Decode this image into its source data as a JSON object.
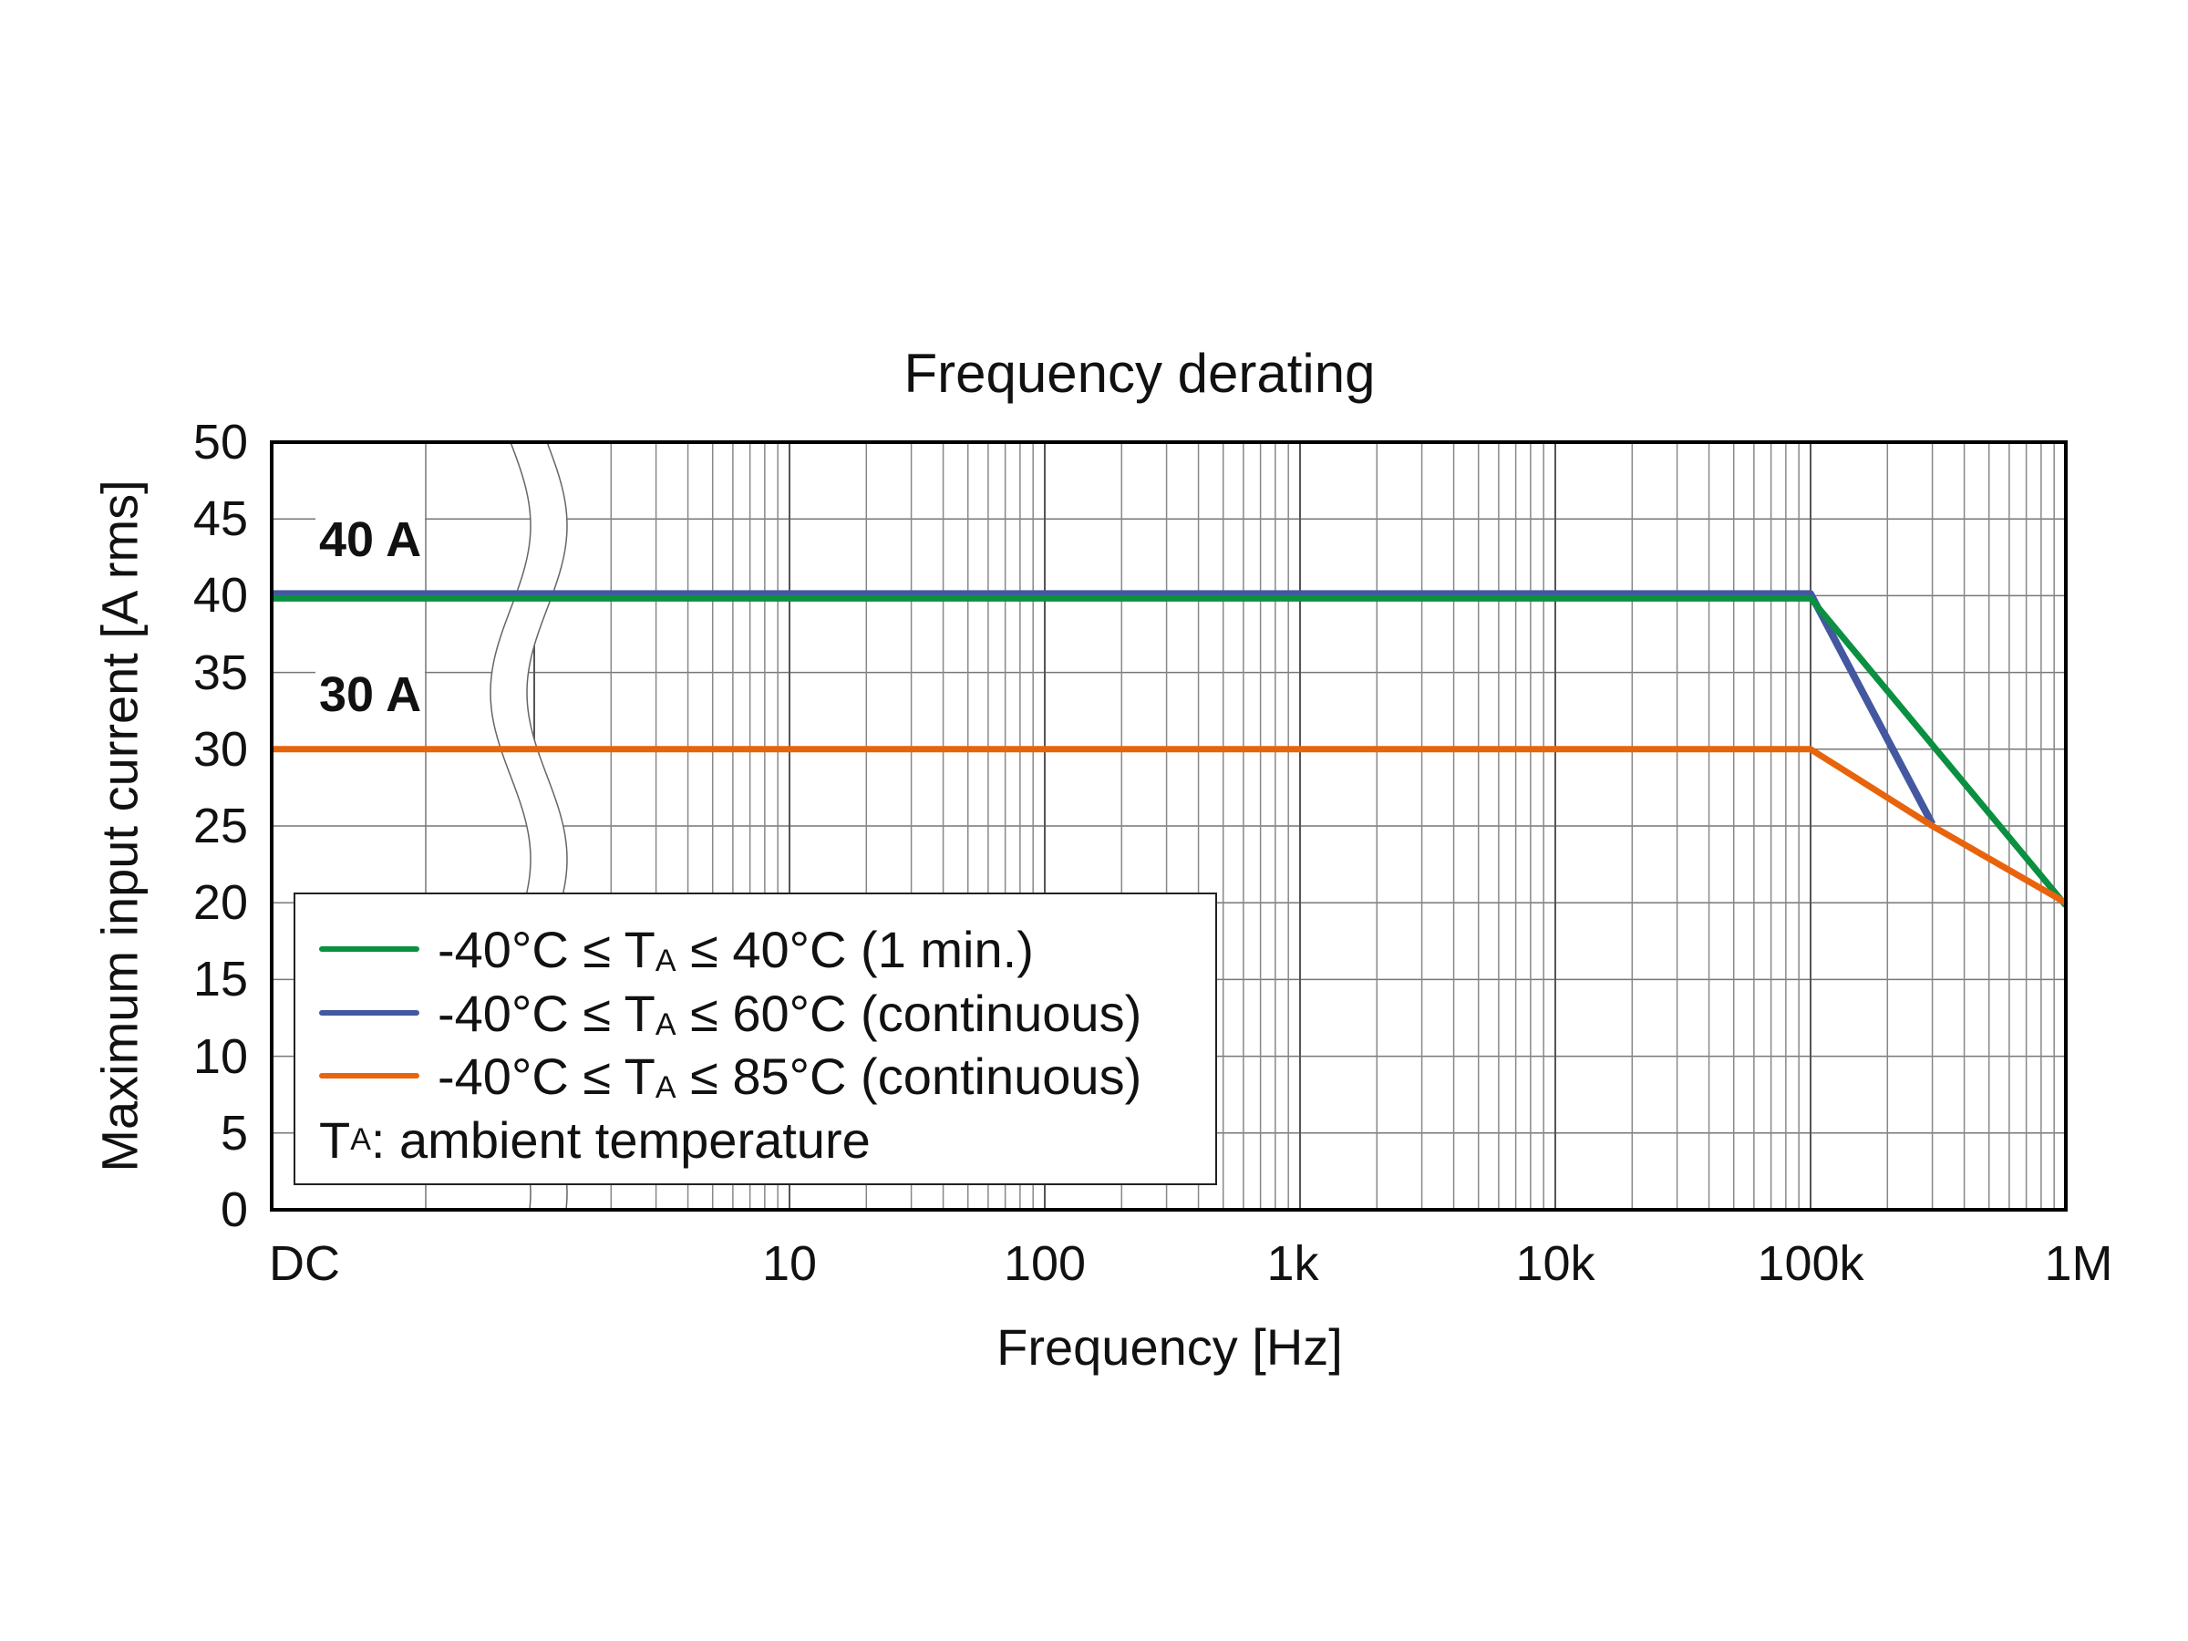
{
  "chart_data": {
    "type": "line",
    "title": "Frequency derating",
    "xlabel": "Frequency [Hz]",
    "ylabel": "Maximum input current [A rms]",
    "xscale": "log (with axis break after DC)",
    "xticks": [
      "DC",
      "10",
      "100",
      "1k",
      "10k",
      "100k",
      "1M"
    ],
    "xtick_values": [
      "DC",
      10,
      100,
      1000,
      10000,
      100000,
      1000000
    ],
    "xlim": [
      "DC",
      1000000
    ],
    "yticks": [
      0,
      5,
      10,
      15,
      20,
      25,
      30,
      35,
      40,
      45,
      50
    ],
    "ylim": [
      0,
      50
    ],
    "grid": true,
    "legend_position": "bottom-left",
    "annotations": [
      "40 A",
      "30 A"
    ],
    "series": [
      {
        "name": "-40°C ≤ TA ≤ 40°C (1 min.)",
        "color": "#0a9040",
        "x": [
          "DC",
          100000,
          1000000
        ],
        "y": [
          40,
          40,
          20
        ]
      },
      {
        "name": "-40°C ≤ TA ≤ 60°C (continuous)",
        "color": "#4358a0",
        "x": [
          "DC",
          100000,
          300000
        ],
        "y": [
          40,
          40,
          25
        ]
      },
      {
        "name": "-40°C ≤ TA ≤ 85°C (continuous)",
        "color": "#e8640c",
        "x": [
          "DC",
          100000,
          300000,
          1000000
        ],
        "y": [
          30,
          30,
          25,
          20
        ]
      }
    ],
    "legend": {
      "entries": [
        {
          "pre": "-40°C ≤ T",
          "sub": "A",
          "post": " ≤ 40°C (1 min.)"
        },
        {
          "pre": "-40°C ≤ T",
          "sub": "A",
          "post": " ≤ 60°C (continuous)"
        },
        {
          "pre": "-40°C ≤ T",
          "sub": "A",
          "post": " ≤ 85°C (continuous)"
        }
      ],
      "note": {
        "pre": "T",
        "sub": "A",
        "post": ": ambient temperature"
      }
    }
  }
}
